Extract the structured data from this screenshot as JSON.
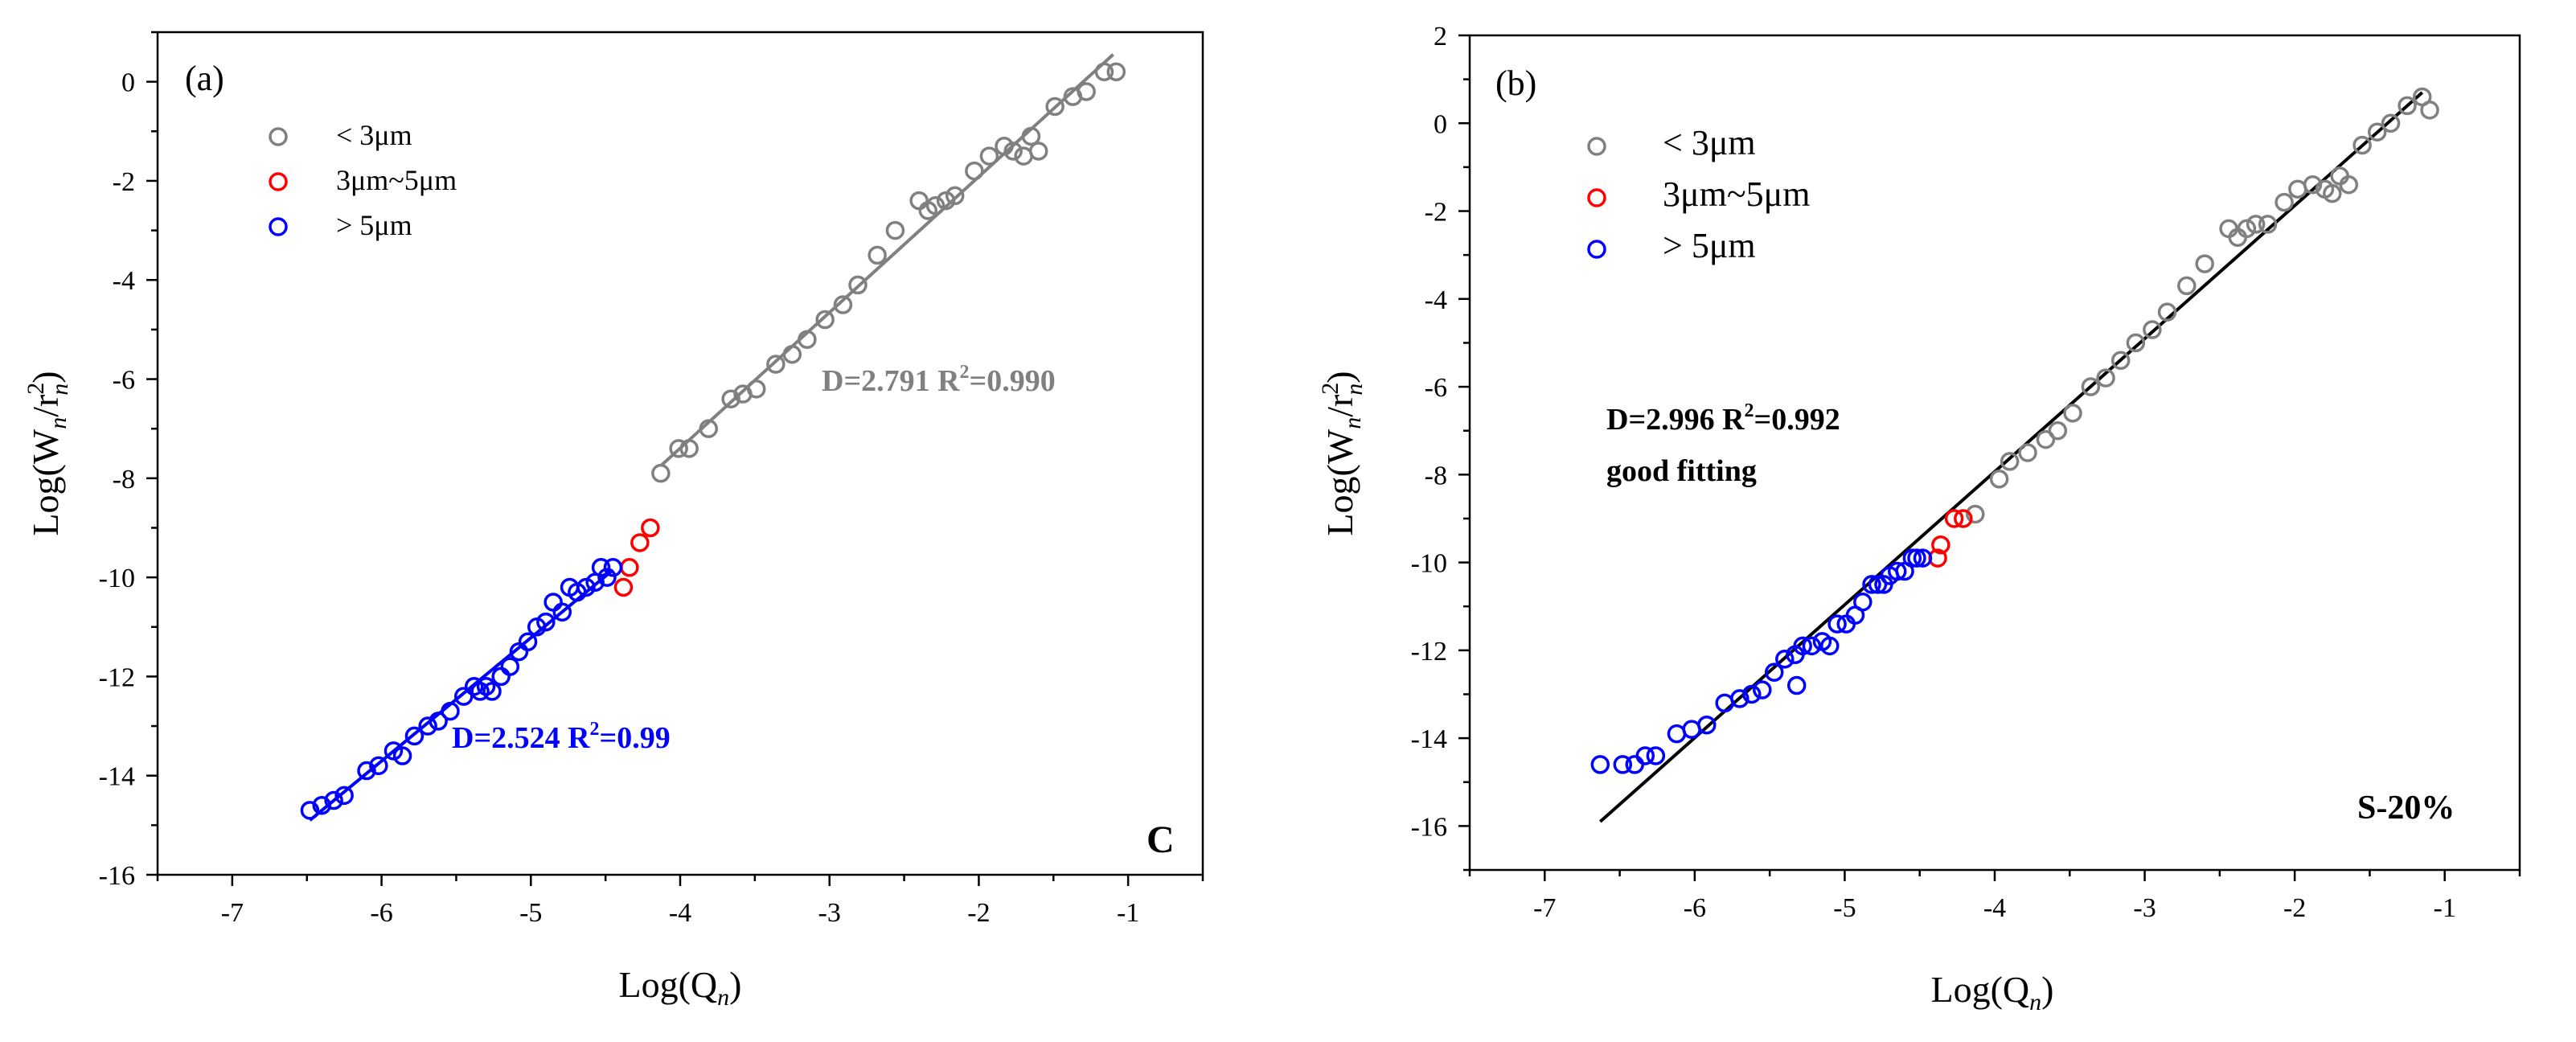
{
  "figure": {
    "title": ""
  },
  "chart_data": [
    {
      "type": "scatter",
      "panel_label": "(a)",
      "corner_label": "C",
      "xlabel_main": "Log(Q",
      "xlabel_sub": "n",
      "xlabel_end": ")",
      "ylabel_main": "Log(W",
      "ylabel_sub1": "n",
      "ylabel_mid": "/r",
      "ylabel_sup": "2",
      "ylabel_sub2": "n",
      "ylabel_end": ")",
      "xlim": [
        -7.5,
        -0.5
      ],
      "ylim": [
        -16,
        1
      ],
      "xticks": [
        -7,
        -6,
        -5,
        -4,
        -3,
        -2,
        -1
      ],
      "yticks": [
        -16,
        -14,
        -12,
        -10,
        -8,
        -6,
        -4,
        -2,
        0
      ],
      "xtick_labels": [
        "-7",
        "-6",
        "-5",
        "-4",
        "-3",
        "-2",
        "-1"
      ],
      "ytick_labels": [
        "-16",
        "-14",
        "-12",
        "-10",
        "-8",
        "-6",
        "-4",
        "-2",
        "0"
      ],
      "legend": [
        {
          "label": "< 3μm",
          "color": "#808080"
        },
        {
          "label": "3μm~5μm",
          "color": "#ff0000"
        },
        {
          "label": "> 5μm",
          "color": "#0000ff"
        }
      ],
      "series": [
        {
          "name": "< 3μm",
          "color": "#808080",
          "x": [
            -4.13,
            -4.01,
            -3.94,
            -3.81,
            -3.66,
            -3.58,
            -3.49,
            -3.36,
            -3.25,
            -3.15,
            -3.03,
            -2.91,
            -2.81,
            -2.68,
            -2.56,
            -2.4,
            -2.34,
            -2.29,
            -2.22,
            -2.16,
            -2.03,
            -1.93,
            -1.83,
            -1.77,
            -1.7,
            -1.65,
            -1.6,
            -1.49,
            -1.37,
            -1.28,
            -1.16,
            -1.08
          ],
          "y": [
            -7.9,
            -7.4,
            -7.4,
            -7.0,
            -6.4,
            -6.3,
            -6.2,
            -5.7,
            -5.5,
            -5.2,
            -4.8,
            -4.5,
            -4.1,
            -3.5,
            -3.0,
            -2.4,
            -2.6,
            -2.5,
            -2.4,
            -2.3,
            -1.8,
            -1.5,
            -1.3,
            -1.4,
            -1.5,
            -1.1,
            -1.4,
            -0.5,
            -0.3,
            -0.2,
            0.2,
            0.2
          ]
        },
        {
          "name": "3μm~5μm",
          "color": "#ff0000",
          "x": [
            -4.38,
            -4.34,
            -4.27,
            -4.2
          ],
          "y": [
            -10.2,
            -9.8,
            -9.3,
            -9.0
          ]
        },
        {
          "name": "> 5μm",
          "color": "#0000ff",
          "x": [
            -6.48,
            -6.4,
            -6.32,
            -6.25,
            -6.1,
            -6.02,
            -5.92,
            -5.86,
            -5.78,
            -5.69,
            -5.62,
            -5.54,
            -5.45,
            -5.38,
            -5.34,
            -5.3,
            -5.26,
            -5.2,
            -5.14,
            -5.08,
            -5.02,
            -4.96,
            -4.9,
            -4.85,
            -4.79,
            -4.74,
            -4.69,
            -4.63,
            -4.57,
            -4.53,
            -4.49,
            -4.45
          ],
          "y": [
            -14.7,
            -14.6,
            -14.5,
            -14.4,
            -13.9,
            -13.8,
            -13.5,
            -13.6,
            -13.2,
            -13.0,
            -12.9,
            -12.7,
            -12.4,
            -12.2,
            -12.3,
            -12.2,
            -12.3,
            -12.0,
            -11.8,
            -11.5,
            -11.3,
            -11.0,
            -10.9,
            -10.5,
            -10.7,
            -10.2,
            -10.3,
            -10.2,
            -10.1,
            -9.8,
            -10.0,
            -9.8
          ]
        }
      ],
      "fits": [
        {
          "name": "fit < 3μm",
          "color": "#808080",
          "x": [
            -4.13,
            -1.1
          ],
          "y": [
            -7.75,
            0.55
          ]
        },
        {
          "name": "fit > 5μm",
          "color": "#0000ff",
          "x": [
            -6.48,
            -4.45
          ],
          "y": [
            -14.9,
            -9.85
          ]
        }
      ],
      "annotations": [
        {
          "text": "D=2.791   R",
          "sup": "2",
          "tail": "=0.990",
          "color": "#808080"
        },
        {
          "text": "D=2.524   R",
          "sup": "2",
          "tail": "=0.99",
          "color": "#0000ff"
        }
      ]
    },
    {
      "type": "scatter",
      "panel_label": "(b)",
      "corner_label": "S-20%",
      "xlabel_main": "Log(Q",
      "xlabel_sub": "n",
      "xlabel_end": ")",
      "ylabel_main": "Log(W",
      "ylabel_sub1": "n",
      "ylabel_mid": "/r",
      "ylabel_sup": "2",
      "ylabel_sub2": "n",
      "ylabel_end": ")",
      "xlim": [
        -7.5,
        -0.5
      ],
      "ylim": [
        -17,
        2
      ],
      "xticks": [
        -7,
        -6,
        -5,
        -4,
        -3,
        -2,
        -1
      ],
      "yticks": [
        -16,
        -14,
        -12,
        -10,
        -8,
        -6,
        -4,
        -2,
        0,
        2
      ],
      "xtick_labels": [
        "-7",
        "-6",
        "-5",
        "-4",
        "-3",
        "-2",
        "-1"
      ],
      "ytick_labels": [
        "-16",
        "-14",
        "-12",
        "-10",
        "-8",
        "-6",
        "-4",
        "-2",
        "0",
        "2"
      ],
      "legend": [
        {
          "label": "< 3μm",
          "color": "#808080"
        },
        {
          "label": "3μm~5μm",
          "color": "#ff0000"
        },
        {
          "label": "> 5μm",
          "color": "#0000ff"
        }
      ],
      "series": [
        {
          "name": "< 3μm",
          "color": "#808080",
          "x": [
            -4.13,
            -3.97,
            -3.9,
            -3.78,
            -3.66,
            -3.58,
            -3.48,
            -3.36,
            -3.26,
            -3.16,
            -3.06,
            -2.95,
            -2.85,
            -2.72,
            -2.6,
            -2.44,
            -2.38,
            -2.32,
            -2.26,
            -2.18,
            -2.07,
            -1.98,
            -1.88,
            -1.8,
            -1.75,
            -1.7,
            -1.64,
            -1.55,
            -1.45,
            -1.36,
            -1.25,
            -1.15,
            -1.1
          ],
          "y": [
            -8.9,
            -8.1,
            -7.7,
            -7.5,
            -7.2,
            -7.0,
            -6.6,
            -6.0,
            -5.8,
            -5.4,
            -5.0,
            -4.7,
            -4.3,
            -3.7,
            -3.2,
            -2.4,
            -2.6,
            -2.4,
            -2.3,
            -2.3,
            -1.8,
            -1.5,
            -1.4,
            -1.5,
            -1.6,
            -1.2,
            -1.4,
            -0.5,
            -0.2,
            0.0,
            0.4,
            0.6,
            0.3
          ]
        },
        {
          "name": "3μm~5μm",
          "color": "#ff0000",
          "x": [
            -4.38,
            -4.36,
            -4.27,
            -4.21
          ],
          "y": [
            -9.9,
            -9.6,
            -9.0,
            -9.0
          ]
        },
        {
          "name": "> 5μm",
          "color": "#0000ff",
          "x": [
            -6.63,
            -6.48,
            -6.4,
            -6.33,
            -6.26,
            -6.12,
            -6.02,
            -5.92,
            -5.8,
            -5.7,
            -5.62,
            -5.55,
            -5.47,
            -5.4,
            -5.33,
            -5.28,
            -5.22,
            -5.15,
            -5.1,
            -5.05,
            -4.99,
            -4.93,
            -4.88,
            -4.82,
            -4.78,
            -4.74,
            -4.7,
            -4.65,
            -4.6,
            -4.55,
            -4.52,
            -4.48,
            -5.32
          ],
          "y": [
            -14.6,
            -14.6,
            -14.6,
            -14.4,
            -14.4,
            -13.9,
            -13.8,
            -13.7,
            -13.2,
            -13.1,
            -13.0,
            -12.9,
            -12.5,
            -12.2,
            -12.1,
            -11.9,
            -11.9,
            -11.8,
            -11.9,
            -11.4,
            -11.4,
            -11.2,
            -10.9,
            -10.5,
            -10.5,
            -10.5,
            -10.3,
            -10.2,
            -10.2,
            -9.9,
            -9.9,
            -9.9,
            -12.8
          ]
        }
      ],
      "fits": [
        {
          "name": "fit all",
          "color": "#000000",
          "x": [
            -6.63,
            -1.15
          ],
          "y": [
            -15.9,
            0.7
          ]
        }
      ],
      "annotations": [
        {
          "text": "D=2.996   R",
          "sup": "2",
          "tail": "=0.992",
          "color": "#000000"
        },
        {
          "text": "good fitting",
          "color": "#000000"
        }
      ]
    }
  ]
}
